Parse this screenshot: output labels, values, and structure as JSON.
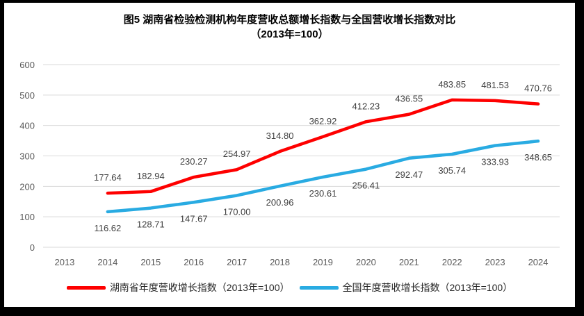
{
  "title": {
    "line1": "图5 湖南省检验检测机构年度营收总额增长指数与全国营收增长指数对比",
    "line2": "（2013年=100）"
  },
  "chart_data": {
    "type": "line",
    "title": "图5 湖南省检验检测机构年度营收总额增长指数与全国营收增长指数对比（2013年=100）",
    "categories": [
      "2013",
      "2014",
      "2015",
      "2016",
      "2017",
      "2018",
      "2019",
      "2020",
      "2021",
      "2022",
      "2023",
      "2024"
    ],
    "series": [
      {
        "name": "湖南省年度营收增长指数（2013年=100）",
        "color": "#FE0000",
        "label_position": "above",
        "values": [
          null,
          177.64,
          182.94,
          230.27,
          254.97,
          314.8,
          362.92,
          412.23,
          436.55,
          483.85,
          481.53,
          470.76
        ]
      },
      {
        "name": "全国年度营收增长指数（2013年=100）",
        "color": "#29ABE2",
        "label_position": "below",
        "values": [
          null,
          116.62,
          128.71,
          147.67,
          170.0,
          200.96,
          230.61,
          256.41,
          292.47,
          305.74,
          333.93,
          348.65
        ]
      }
    ],
    "yticks": [
      0,
      100,
      200,
      300,
      400,
      500,
      600
    ],
    "ylim": [
      0,
      600
    ],
    "xlabel": "",
    "ylabel": "",
    "grid": "horizontal",
    "legend_position": "bottom",
    "label_decimals": 2,
    "colors": {
      "gridline": "#D9D9D9",
      "axis_text": "#595959",
      "data_label_text": "#404040",
      "background": "#FFFFFF",
      "border": "#000000"
    }
  }
}
